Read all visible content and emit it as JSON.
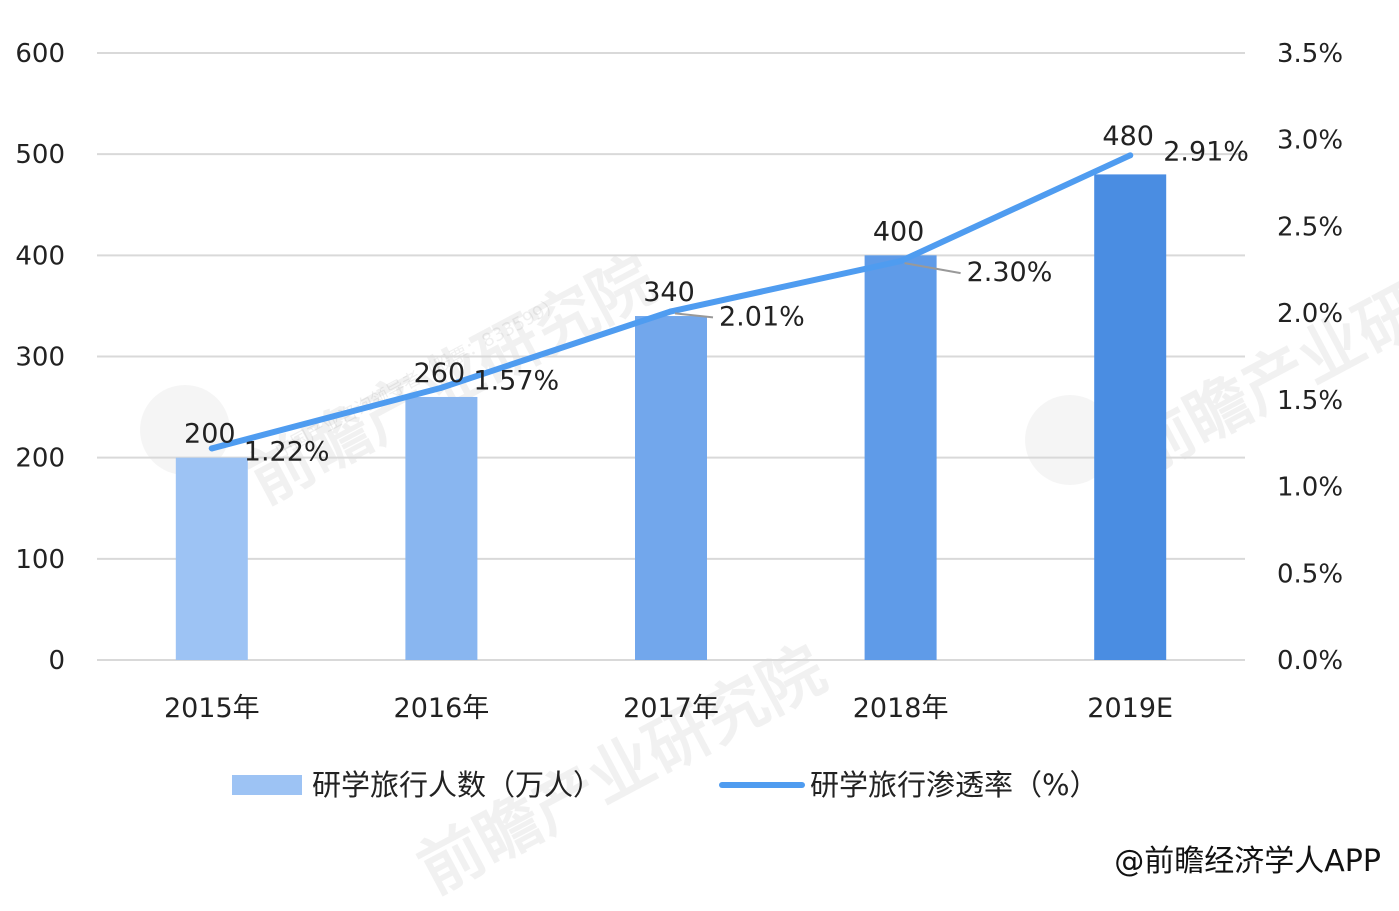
{
  "chart_data": {
    "type": "bar",
    "categories": [
      "2015年",
      "2016年",
      "2017年",
      "2018年",
      "2019E"
    ],
    "series": [
      {
        "name": "研学旅行人数（万人）",
        "type": "bar",
        "axis": "left",
        "values": [
          200,
          260,
          340,
          400,
          480
        ],
        "labels": [
          "200",
          "260",
          "340",
          "400",
          "480"
        ],
        "colors": [
          "#9dc3f4",
          "#89b6f0",
          "#72a7ec",
          "#5f9be8",
          "#4a8de2"
        ]
      },
      {
        "name": "研学旅行渗透率（%）",
        "type": "line",
        "axis": "right",
        "values": [
          1.22,
          1.57,
          2.01,
          2.3,
          2.91
        ],
        "labels": [
          "1.22%",
          "1.57%",
          "2.01%",
          "2.30%",
          "2.91%"
        ],
        "color": "#4f9cf0"
      }
    ],
    "y_left": {
      "ylim": [
        0,
        600
      ],
      "ticks": [
        0,
        100,
        200,
        300,
        400,
        500,
        600
      ],
      "tick_labels": [
        "0",
        "100",
        "200",
        "300",
        "400",
        "500",
        "600"
      ]
    },
    "y_right": {
      "ylim": [
        0,
        3.5
      ],
      "ticks": [
        0,
        0.5,
        1.0,
        1.5,
        2.0,
        2.5,
        3.0,
        3.5
      ],
      "tick_labels": [
        "0.0%",
        "0.5%",
        "1.0%",
        "1.5%",
        "2.0%",
        "2.5%",
        "3.0%",
        "3.5%"
      ]
    },
    "grid": true,
    "legend_position": "bottom",
    "gridline_color": "#d9d9d9"
  },
  "credit": "@前瞻经济学人APP",
  "watermark": {
    "main": "前瞻产业研究院",
    "sub": "中国产业咨询领导者（股票：833599）"
  }
}
